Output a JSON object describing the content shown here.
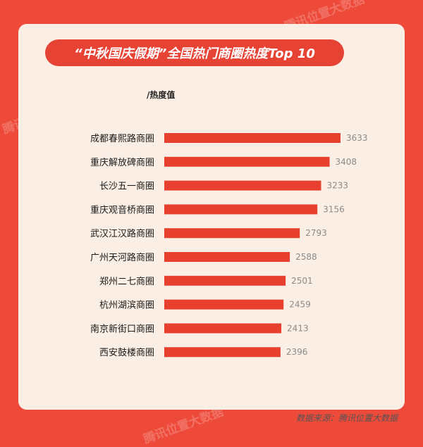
{
  "watermark": "腾讯位置大数据",
  "chart_data": {
    "type": "bar",
    "orientation": "horizontal",
    "title": "“中秋国庆假期”全国热门商圈热度Top 10",
    "unit_label": "/热度值",
    "categories": [
      "成都春熙路商圈",
      "重庆解放碑商圈",
      "长沙五一商圈",
      "重庆观音桥商圈",
      "武汉江汉路商圈",
      "广州天河路商圈",
      "郑州二七商圈",
      "杭州湖滨商圈",
      "南京新街口商圈",
      "西安鼓楼商圈"
    ],
    "values": [
      3633,
      3408,
      3233,
      3156,
      2793,
      2588,
      2501,
      2459,
      2413,
      2396
    ],
    "bar_color": "#e8402f",
    "grid": false
  },
  "source": "数据来源：腾讯位置大数据"
}
